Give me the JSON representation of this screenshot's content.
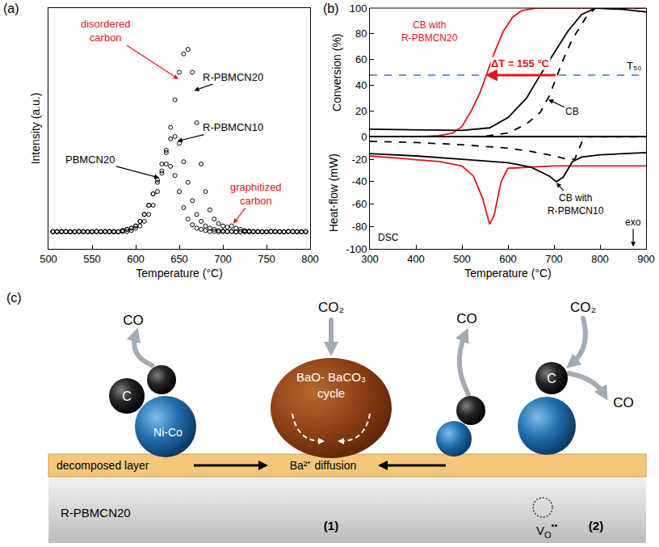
{
  "chart_data": [
    {
      "panel_label": "(a)",
      "type": "scatter",
      "marker": "open circle",
      "x_label": "Temperature (°C)",
      "y_label": "Intensity (a.u.)",
      "xlim": [
        500,
        800
      ],
      "xticks": [
        500,
        550,
        600,
        650,
        700,
        750,
        800
      ],
      "ylim": [
        -7,
        98
      ],
      "yticks": [],
      "tick_labels": "x",
      "grid": false,
      "x": [
        505,
        510,
        515,
        520,
        525,
        530,
        535,
        540,
        545,
        550,
        555,
        560,
        565,
        570,
        575,
        580,
        585,
        590,
        595,
        600,
        605,
        610,
        615,
        620,
        625,
        630,
        635,
        640,
        645,
        650,
        655,
        660,
        665,
        670,
        675,
        680,
        685,
        690,
        695,
        700,
        705,
        710,
        715,
        720,
        725,
        730,
        735,
        740,
        745,
        750,
        755,
        760,
        765,
        770,
        775,
        780,
        785,
        790,
        795
      ],
      "series": [
        {
          "color": "#000000",
          "values": [
            0.5,
            0.4,
            0.6,
            0.5,
            0.4,
            0.5,
            0.6,
            0.5,
            0.4,
            0.5,
            0.6,
            0.5,
            0.5,
            0.4,
            0.6,
            0.5,
            0.5,
            0.6,
            1,
            2,
            3,
            5,
            8,
            12,
            18,
            26,
            35,
            46,
            58,
            70,
            78,
            80,
            70,
            48,
            30,
            18,
            10,
            6,
            4,
            3,
            2.5,
            3,
            2,
            1.5,
            1,
            0.8,
            0.5,
            0.6,
            0.4,
            0.5,
            0.5,
            0.6,
            0.4,
            0.5,
            0.5,
            0.6,
            0.4,
            0.5,
            0.5
          ]
        },
        {
          "color": "#000000",
          "values": [
            0.5,
            0.6,
            0.4,
            0.5,
            0.5,
            0.4,
            0.6,
            0.5,
            0.5,
            0.4,
            0.6,
            0.5,
            0.5,
            0.6,
            0.4,
            0.5,
            1,
            1.5,
            2,
            3,
            5,
            8,
            12,
            17,
            23,
            30,
            36,
            41,
            42,
            39,
            31,
            22,
            14,
            8,
            5,
            3,
            2,
            1.5,
            1,
            0.8,
            0.5,
            0.6,
            0.4,
            0.5,
            0.5,
            0.6,
            0.4,
            0.5,
            0.5,
            0.4,
            0.6,
            0.5,
            0.5,
            0.4,
            0.6,
            0.5,
            0.5,
            0.4,
            0.5
          ]
        },
        {
          "color": "#000000",
          "values": [
            0.4,
            0.5,
            0.5,
            0.6,
            0.4,
            0.5,
            0.5,
            0.6,
            0.4,
            0.5,
            0.5,
            0.4,
            0.6,
            0.5,
            0.5,
            0.4,
            1,
            1.5,
            2,
            3,
            5,
            8,
            12,
            17,
            22,
            27,
            30,
            29,
            25,
            18,
            11,
            6,
            3.5,
            2,
            1.5,
            1,
            0.5,
            0.6,
            0.4,
            0.5,
            0.5,
            0.6,
            0.4,
            0.5,
            0.5,
            0.4,
            0.6,
            0.5,
            0.5,
            0.4,
            0.6,
            0.5,
            0.5,
            0.4,
            0.6,
            0.5,
            0.5,
            0.4,
            0.5
          ]
        }
      ],
      "annotations": [
        {
          "text": "disordered carbon",
          "color": "#e8141b",
          "x": 565,
          "y": 88,
          "target": [
            649,
            67
          ]
        },
        {
          "text": "R-PBMCN20",
          "color": "#000000",
          "x": 712,
          "y": 68,
          "target": [
            667,
            62
          ]
        },
        {
          "text": "R-PBMCN10",
          "color": "#000000",
          "x": 712,
          "y": 46,
          "target": [
            648,
            40
          ]
        },
        {
          "text": "PBMCN20",
          "color": "#000000",
          "x": 548,
          "y": 32,
          "target": [
            627,
            24
          ]
        },
        {
          "text": "graphitized carbon",
          "color": "#e8141b",
          "x": 738,
          "y": 17,
          "target": [
            712,
            4
          ]
        }
      ]
    },
    {
      "panel_label": "(b)",
      "type": "line",
      "x_label": "Temperature (°C)",
      "y_label": "Conversion (%)",
      "y2_label": "Heat-flow (mW)",
      "xlim": [
        300,
        900
      ],
      "xticks": [
        300,
        400,
        500,
        600,
        700,
        800,
        900
      ],
      "ylim": [
        0,
        100
      ],
      "yticks": [
        0,
        20,
        40,
        60,
        80,
        100
      ],
      "y2lim": [
        -100,
        0
      ],
      "y2ticks": [
        -100,
        -80,
        -60,
        -40,
        -20
      ],
      "grid": false,
      "series": [
        {
          "color": "#e8141b",
          "line_style": "solid",
          "x": [
            300,
            400,
            450,
            480,
            500,
            520,
            540,
            555,
            570,
            590,
            610,
            630,
            660,
            700,
            800,
            900
          ],
          "values": [
            0,
            0,
            1,
            3,
            8,
            20,
            35,
            50,
            65,
            82,
            93,
            98,
            100,
            100,
            100,
            100
          ]
        },
        {
          "color": "#000000",
          "line_style": "solid",
          "x": [
            300,
            400,
            500,
            560,
            600,
            640,
            670,
            700,
            730,
            760,
            790,
            850,
            900
          ],
          "values": [
            6,
            5.5,
            5,
            7,
            15,
            30,
            48,
            65,
            82,
            95,
            100,
            99,
            97
          ]
        },
        {
          "color": "#000000",
          "line_style": "dashed",
          "x": [
            300,
            400,
            500,
            550,
            600,
            640,
            670,
            690,
            720,
            740,
            770,
            790,
            850,
            900
          ],
          "values": [
            0,
            0,
            0,
            0.5,
            3,
            10,
            19,
            32,
            60,
            76,
            93,
            100,
            100,
            100
          ]
        },
        {
          "color": "#e8141b",
          "line_style": "solid",
          "axis": "y2",
          "x": [
            300,
            400,
            450,
            500,
            525,
            545,
            560,
            570,
            585,
            600,
            650,
            700,
            800,
            900
          ],
          "values": [
            -17,
            -20,
            -22,
            -26,
            -35,
            -55,
            -78,
            -70,
            -40,
            -28,
            -27,
            -26,
            -26,
            -26
          ]
        },
        {
          "color": "#000000",
          "line_style": "solid",
          "axis": "y2",
          "x": [
            300,
            400,
            500,
            600,
            650,
            690,
            705,
            720,
            740,
            760,
            800,
            900
          ],
          "values": [
            -15,
            -17,
            -20,
            -23,
            -27,
            -35,
            -40,
            -36,
            -22,
            -18,
            -16,
            -14
          ]
        },
        {
          "color": "#000000",
          "line_style": "dashed",
          "axis": "y2",
          "x": [
            300,
            400,
            500,
            600,
            650,
            700,
            730,
            745,
            755,
            765,
            800,
            900
          ],
          "values": [
            -4,
            -5,
            -7,
            -10,
            -13,
            -17,
            -20,
            -20,
            -10,
            0,
            0,
            0
          ]
        }
      ],
      "threshold": {
        "label": "T₅₀",
        "value": 48,
        "color": "#3b6fcf",
        "line_style": "dashed",
        "x": 875,
        "y": 55
      },
      "delta": {
        "label": "ΔT = 155 °C",
        "from": 706,
        "to": 551,
        "y": 48,
        "color": "#e8141b",
        "label_x": 628,
        "label_y": 57
      },
      "annotations": [
        {
          "text": "CB with R-PBMCN20",
          "color": "#e8141b",
          "x": 430,
          "y": 82
        },
        {
          "text": "CB",
          "color": "#000000",
          "x": 740,
          "y": 20,
          "target": [
            688,
            29
          ]
        },
        {
          "text": "CB with R-PBMCN10",
          "color": "#000000",
          "axis": "y2",
          "x": 748,
          "y": -60,
          "target": [
            705,
            -41
          ]
        },
        {
          "text": "DSC",
          "color": "#000000",
          "axis": "y2",
          "x": 340,
          "y": -90
        },
        {
          "text": "exo",
          "color": "#000000",
          "axis": "y2",
          "x": 872,
          "y": -76,
          "target": [
            872,
            -98
          ]
        }
      ]
    }
  ],
  "diagram": {
    "panel_label": "(c)",
    "substrate": "R-PBMCN20",
    "layer": "decomposed layer",
    "diffusion": "Ba²⁺ diffusion",
    "cycle": "BaO- BaCO₃ cycle",
    "metal": "Ni-Co",
    "carbon_labels": [
      "C",
      "C"
    ],
    "reactants": [
      "CO₂",
      "CO₂"
    ],
    "products": [
      "CO",
      "CO",
      "CO"
    ],
    "sites": [
      "(1)",
      "(2)"
    ],
    "vacancy": {
      "base": "V",
      "sub": "O",
      "sup": "••"
    }
  }
}
